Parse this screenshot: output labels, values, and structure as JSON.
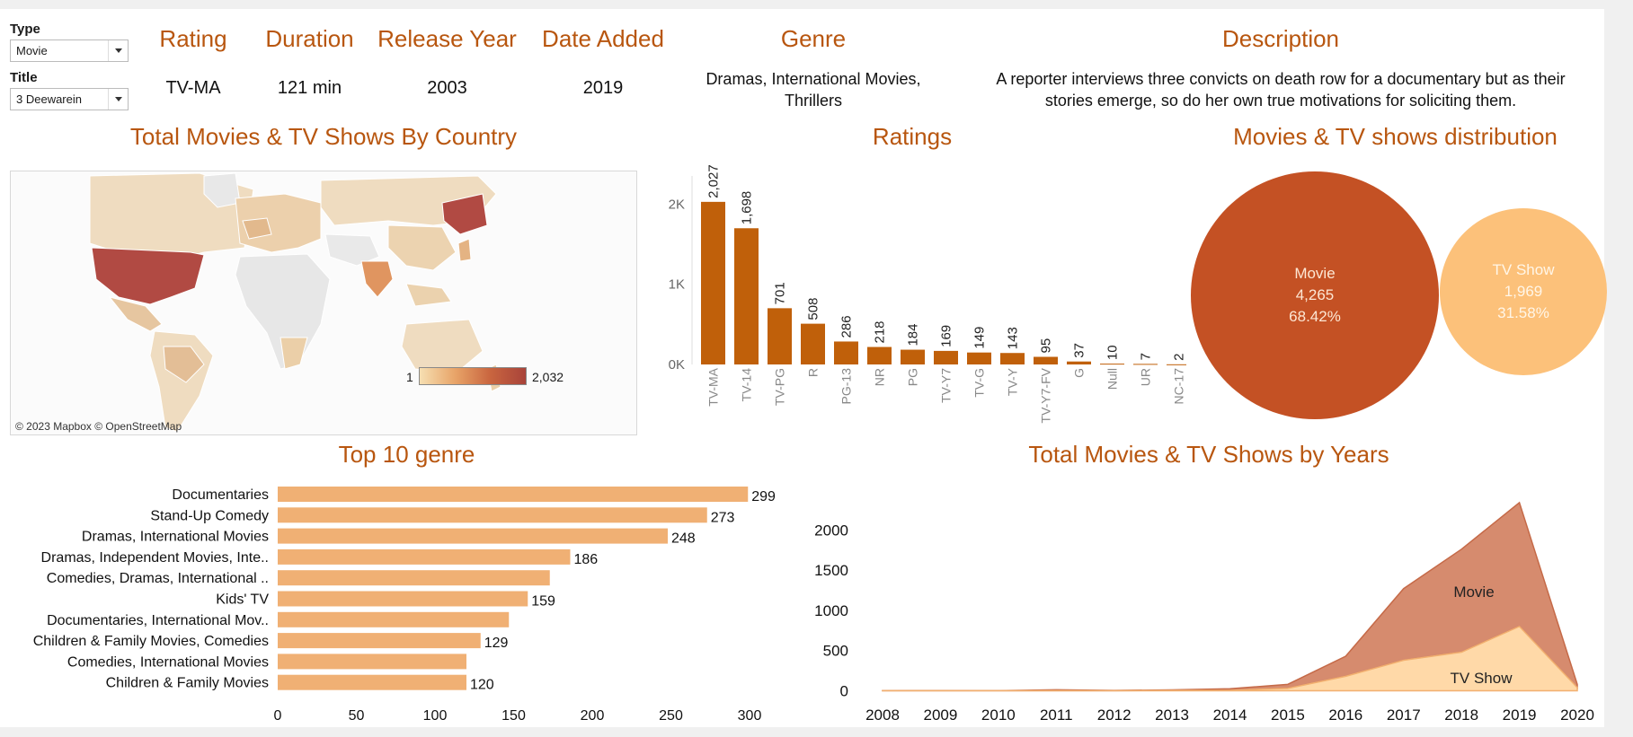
{
  "filters": {
    "type_label": "Type",
    "type_value": "Movie",
    "title_label": "Title",
    "title_value": "3 Deewarein"
  },
  "details": {
    "rating_header": "Rating",
    "rating_value": "TV-MA",
    "duration_header": "Duration",
    "duration_value": "121 min",
    "release_header": "Release Year",
    "release_value": "2003",
    "added_header": "Date Added",
    "added_value": "2019",
    "genre_header": "Genre",
    "genre_line1": "Dramas, International Movies,",
    "genre_line2": "Thrillers",
    "description_header": "Description",
    "description_line1": "A reporter interviews three convicts on death row for a documentary but as their",
    "description_line2": "stories emerge, so do her own true motivations for soliciting them."
  },
  "map": {
    "title": "Total Movies & TV Shows By Country",
    "credit": "© 2023 Mapbox © OpenStreetMap",
    "legend_min": "1",
    "legend_max": "2,032"
  },
  "distribution": {
    "title": "Movies & TV shows distribution",
    "movie_label": "Movie",
    "movie_count": "4,265",
    "movie_pct": "68.42%",
    "tv_label": "TV Show",
    "tv_count": "1,969",
    "tv_pct": "31.58%"
  },
  "colors": {
    "accent": "#b8560f",
    "bar_dark": "#c0600a",
    "bar_light": "#f0b074",
    "movie_bubble": "#c45124",
    "tv_bubble": "#fcc17a",
    "area_movie": "#d68b6e",
    "area_tv": "#ffd9a8"
  },
  "chart_data": [
    {
      "type": "bar",
      "title": "Ratings",
      "categories": [
        "TV-MA",
        "TV-14",
        "TV-PG",
        "R",
        "PG-13",
        "NR",
        "PG",
        "TV-Y7",
        "TV-G",
        "TV-Y",
        "TV-Y7-FV",
        "G",
        "Null",
        "UR",
        "NC-17"
      ],
      "values": [
        2027,
        1698,
        701,
        508,
        286,
        218,
        184,
        169,
        149,
        143,
        95,
        37,
        10,
        7,
        2
      ],
      "value_labels": [
        "2,027",
        "1,698",
        "701",
        "508",
        "286",
        "218",
        "184",
        "169",
        "149",
        "143",
        "95",
        "37",
        "10",
        "7",
        "2"
      ],
      "yticks": [
        "0K",
        "1K",
        "2K"
      ],
      "ylim": [
        0,
        2350
      ]
    },
    {
      "type": "bar",
      "orientation": "horizontal",
      "title": "Top 10 genre",
      "categories": [
        "Documentaries",
        "Stand-Up Comedy",
        "Dramas, International Movies",
        "Dramas, Independent Movies, Inte..",
        "Comedies, Dramas, International ..",
        "Kids' TV",
        "Documentaries, International Mov..",
        "Children & Family Movies, Comedies",
        "Comedies, International Movies",
        "Children & Family Movies"
      ],
      "values": [
        299,
        273,
        248,
        186,
        173,
        159,
        147,
        129,
        120,
        120
      ],
      "value_labels": [
        "299",
        "273",
        "248",
        "186",
        "",
        "159",
        "",
        "129",
        "",
        "120"
      ],
      "xticks": [
        "0",
        "50",
        "100",
        "150",
        "200",
        "250",
        "300"
      ],
      "xlim": [
        0,
        320
      ]
    },
    {
      "type": "area",
      "title": "Total Movies & TV Shows by Years",
      "x": [
        "2008",
        "2009",
        "2010",
        "2011",
        "2012",
        "2013",
        "2014",
        "2015",
        "2016",
        "2017",
        "2018",
        "2019",
        "2020"
      ],
      "series": [
        {
          "name": "TV Show",
          "values": [
            1,
            1,
            1,
            1,
            2,
            5,
            6,
            30,
            180,
            380,
            480,
            800,
            40
          ]
        },
        {
          "name": "Movie",
          "values": [
            1,
            2,
            1,
            12,
            3,
            6,
            19,
            50,
            250,
            890,
            1280,
            1540,
            40
          ]
        }
      ],
      "yticks": [
        "0",
        "500",
        "1000",
        "1500",
        "2000"
      ],
      "ylim": [
        -50,
        2450
      ],
      "stacked": true
    }
  ]
}
